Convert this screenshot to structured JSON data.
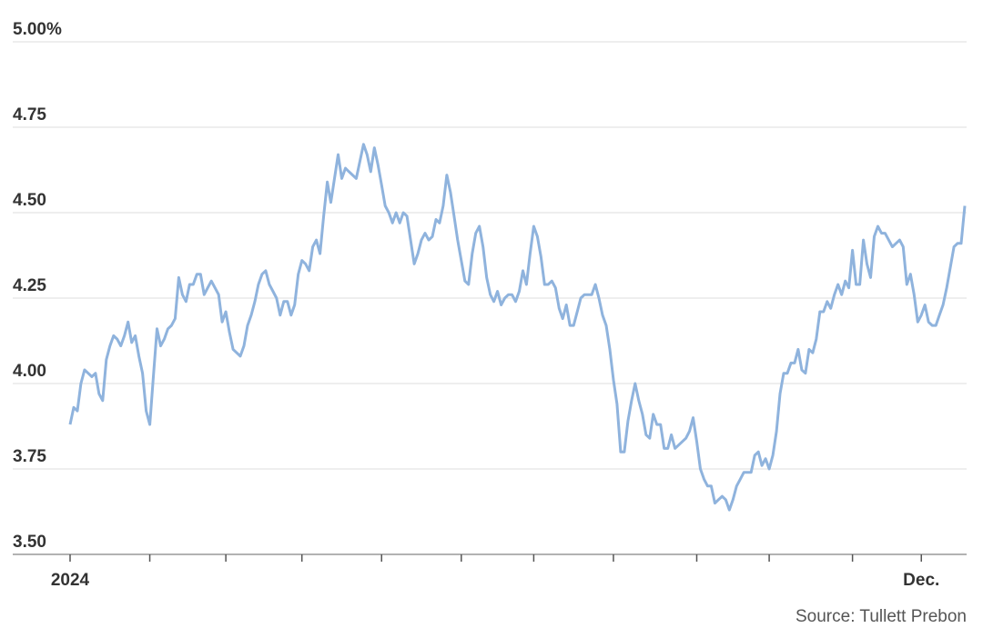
{
  "chart_data": {
    "type": "line",
    "source": "Source: Tullett Prebon",
    "categories": [
      "2024",
      null,
      null,
      null,
      null,
      null,
      null,
      null,
      null,
      null,
      null,
      null,
      null,
      null,
      null,
      null,
      null,
      null,
      null,
      null,
      null,
      null,
      null,
      null,
      null,
      null,
      null,
      null,
      null,
      null,
      null,
      null,
      null,
      null,
      null,
      null,
      null,
      null,
      null,
      null,
      null,
      null,
      null,
      null,
      null,
      null,
      null,
      null,
      null,
      null,
      null,
      null,
      null,
      null,
      null,
      null,
      null,
      null,
      null,
      null,
      null,
      null,
      null,
      null,
      null,
      null,
      null,
      null,
      null,
      null,
      null,
      null,
      null,
      null,
      null,
      null,
      null,
      null,
      null,
      null,
      null,
      null,
      null,
      null,
      null,
      null,
      null,
      null,
      null,
      null,
      null,
      null,
      null,
      null,
      null,
      null,
      null,
      null,
      null,
      null,
      null,
      null,
      null,
      null,
      null,
      null,
      null,
      null,
      null,
      null,
      null,
      null,
      null,
      null,
      null,
      null,
      null,
      null,
      null,
      null,
      null,
      null,
      null,
      null,
      null,
      null,
      null,
      null,
      null,
      null,
      null,
      null,
      null,
      null,
      null,
      null,
      null,
      null,
      null,
      null,
      null,
      null,
      null,
      null,
      null,
      null,
      null,
      null,
      null,
      null,
      null,
      null,
      null,
      null,
      null,
      null,
      null,
      null,
      null,
      null,
      null,
      null,
      null,
      null,
      null,
      null,
      null,
      null,
      null,
      null,
      null,
      null,
      null,
      null,
      null,
      null,
      null,
      null,
      null,
      null,
      null,
      null,
      null,
      null,
      null,
      null,
      null,
      null,
      null,
      null,
      null,
      null,
      null,
      null,
      null,
      null,
      null,
      null,
      null,
      null,
      null,
      null,
      null,
      null,
      null,
      null,
      null,
      null,
      null,
      null,
      null,
      null,
      null,
      null,
      null,
      null,
      null,
      null,
      null,
      null,
      null,
      null,
      null,
      null,
      null,
      null,
      null,
      null,
      null,
      null,
      null,
      null,
      null,
      null,
      null,
      "Dec.",
      null,
      null,
      null,
      null,
      null,
      null,
      null,
      null,
      null,
      null,
      null,
      null
    ],
    "series": [
      {
        "color": "#8fb3dd",
        "values": [
          3.88,
          3.93,
          3.92,
          4.0,
          4.04,
          4.03,
          4.02,
          4.03,
          3.97,
          3.95,
          4.07,
          4.11,
          4.14,
          4.13,
          4.11,
          4.14,
          4.18,
          4.12,
          4.14,
          4.08,
          4.03,
          3.92,
          3.88,
          4.02,
          4.16,
          4.11,
          4.13,
          4.16,
          4.17,
          4.19,
          4.31,
          4.26,
          4.24,
          4.29,
          4.29,
          4.32,
          4.32,
          4.26,
          4.28,
          4.3,
          4.28,
          4.26,
          4.18,
          4.21,
          4.15,
          4.1,
          4.09,
          4.08,
          4.11,
          4.17,
          4.2,
          4.24,
          4.29,
          4.32,
          4.33,
          4.29,
          4.27,
          4.25,
          4.2,
          4.24,
          4.24,
          4.2,
          4.23,
          4.32,
          4.36,
          4.35,
          4.33,
          4.4,
          4.42,
          4.38,
          4.49,
          4.59,
          4.53,
          4.6,
          4.67,
          4.6,
          4.63,
          4.62,
          4.61,
          4.6,
          4.65,
          4.7,
          4.67,
          4.62,
          4.69,
          4.64,
          4.58,
          4.52,
          4.5,
          4.47,
          4.5,
          4.47,
          4.5,
          4.49,
          4.42,
          4.35,
          4.38,
          4.42,
          4.44,
          4.42,
          4.43,
          4.48,
          4.47,
          4.52,
          4.61,
          4.56,
          4.49,
          4.42,
          4.36,
          4.3,
          4.29,
          4.38,
          4.44,
          4.46,
          4.4,
          4.31,
          4.26,
          4.24,
          4.27,
          4.23,
          4.25,
          4.26,
          4.26,
          4.24,
          4.27,
          4.33,
          4.29,
          4.38,
          4.46,
          4.43,
          4.37,
          4.29,
          4.29,
          4.3,
          4.28,
          4.22,
          4.19,
          4.23,
          4.17,
          4.17,
          4.21,
          4.25,
          4.26,
          4.26,
          4.26,
          4.29,
          4.25,
          4.2,
          4.17,
          4.1,
          4.01,
          3.94,
          3.8,
          3.8,
          3.89,
          3.95,
          4.0,
          3.95,
          3.91,
          3.85,
          3.84,
          3.91,
          3.88,
          3.88,
          3.81,
          3.81,
          3.85,
          3.81,
          3.82,
          3.83,
          3.84,
          3.86,
          3.9,
          3.83,
          3.75,
          3.72,
          3.7,
          3.7,
          3.65,
          3.66,
          3.67,
          3.66,
          3.63,
          3.66,
          3.7,
          3.72,
          3.74,
          3.74,
          3.74,
          3.79,
          3.8,
          3.76,
          3.78,
          3.75,
          3.79,
          3.86,
          3.97,
          4.03,
          4.03,
          4.06,
          4.06,
          4.1,
          4.04,
          4.03,
          4.1,
          4.09,
          4.13,
          4.21,
          4.21,
          4.24,
          4.22,
          4.26,
          4.29,
          4.26,
          4.3,
          4.28,
          4.39,
          4.29,
          4.29,
          4.42,
          4.35,
          4.31,
          4.43,
          4.46,
          4.44,
          4.44,
          4.42,
          4.4,
          4.41,
          4.42,
          4.4,
          4.29,
          4.32,
          4.26,
          4.18,
          4.2,
          4.23,
          4.18,
          4.17,
          4.17,
          4.2,
          4.23,
          4.28,
          4.34,
          4.4,
          4.41,
          4.41,
          4.52
        ]
      }
    ],
    "ylim": [
      3.5,
      5
    ],
    "yticks": [
      {
        "value": 3.5,
        "label": "3.50"
      },
      3.75,
      {
        "value": 4,
        "label": "4.00"
      },
      4.25,
      {
        "value": 4.5,
        "label": "4.50"
      },
      4.75,
      {
        "value": 5,
        "label": "5.00%"
      }
    ],
    "grid": true
  }
}
